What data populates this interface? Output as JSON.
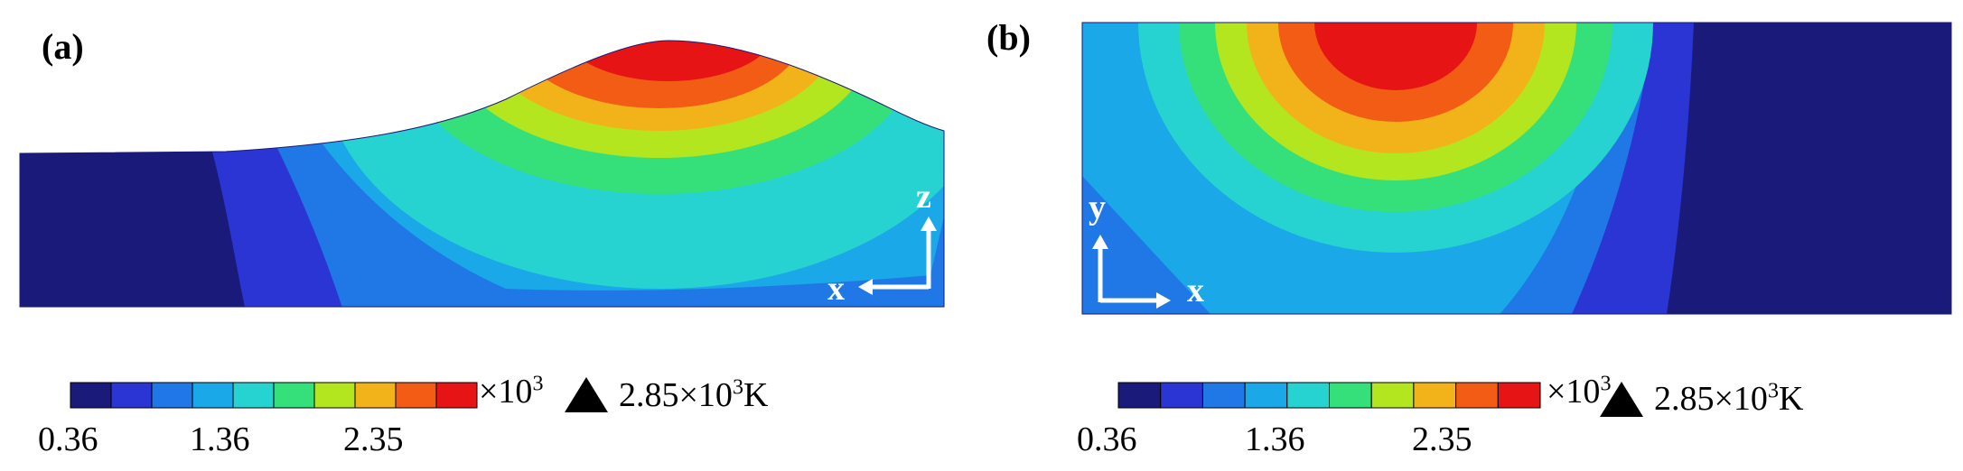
{
  "panels": [
    {
      "label": "(a)",
      "axes": {
        "horizontal": "x",
        "vertical": "z"
      }
    },
    {
      "label": "(b)",
      "axes": {
        "horizontal": "x",
        "vertical": "y"
      }
    }
  ],
  "colorbar": {
    "colors": [
      "#1a1a7a",
      "#2a35d4",
      "#1f78e6",
      "#1aa8e8",
      "#27d3d0",
      "#35e07a",
      "#b4e61f",
      "#f2b31a",
      "#f25c14",
      "#e61414"
    ],
    "ticks": [
      "0.36",
      "1.36",
      "2.35"
    ],
    "scale_label": "×10",
    "scale_exp": "3",
    "max_marker": "▲",
    "max_value": "2.85×10",
    "max_exp": "3",
    "max_unit": "K"
  }
}
